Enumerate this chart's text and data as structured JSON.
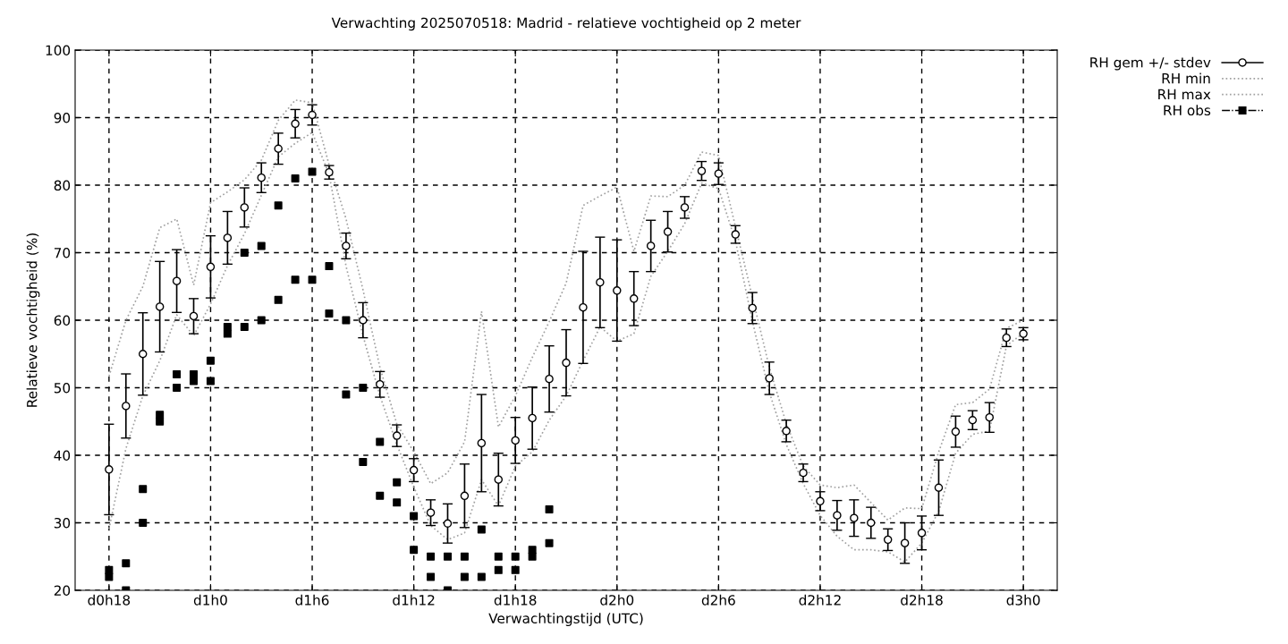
{
  "chart_data": {
    "type": "scatter",
    "title": "Verwachting 2025070518: Madrid - relatieve vochtigheid op 2 meter",
    "xlabel": "Verwachtingstijd (UTC)",
    "ylabel": "Relatieve vochtigheid (%)",
    "categories": [
      "d0h18",
      null,
      null,
      null,
      null,
      null,
      "d1h0",
      null,
      null,
      null,
      null,
      null,
      "d1h6",
      null,
      null,
      null,
      null,
      null,
      "d1h12",
      null,
      null,
      null,
      null,
      null,
      "d1h18",
      null,
      null,
      null,
      null,
      null,
      "d2h0",
      null,
      null,
      null,
      null,
      null,
      "d2h6",
      null,
      null,
      null,
      null,
      null,
      "d2h12",
      null,
      null,
      null,
      null,
      null,
      "d2h18",
      null,
      null,
      null,
      null,
      null,
      "d3h0"
    ],
    "ylim": [
      20,
      100
    ],
    "yticks": [
      20,
      30,
      40,
      50,
      60,
      70,
      80,
      90,
      100
    ],
    "grid": true,
    "legend": "top right",
    "series": [
      {
        "name": "RH gem +/- stdev",
        "marker": "circle",
        "color": "#000000",
        "values": [
          37.9,
          47.3,
          55.0,
          62.0,
          65.8,
          60.6,
          67.9,
          72.2,
          76.7,
          81.1,
          85.4,
          89.1,
          90.4,
          81.9,
          71.0,
          60.0,
          50.5,
          42.9,
          37.8,
          31.5,
          29.9,
          34.0,
          41.8,
          36.4,
          42.2,
          45.5,
          51.3,
          53.7,
          61.9,
          65.6,
          64.4,
          63.2,
          71.0,
          73.1,
          76.7,
          82.1,
          81.7,
          72.7,
          61.8,
          51.4,
          43.6,
          37.4,
          33.2,
          31.1,
          30.7,
          30.0,
          27.5,
          27.0,
          28.5,
          35.2,
          43.5,
          45.2,
          45.6,
          57.4,
          58.0
        ],
        "errors": [
          6.7,
          4.75,
          6.1,
          6.7,
          4.65,
          2.6,
          4.6,
          3.9,
          2.9,
          2.2,
          2.3,
          2.1,
          1.5,
          1.0,
          1.9,
          2.6,
          1.9,
          1.6,
          1.7,
          1.9,
          2.9,
          4.7,
          7.2,
          3.9,
          3.4,
          4.6,
          4.9,
          4.9,
          8.3,
          6.7,
          7.5,
          4.0,
          3.8,
          3.0,
          1.6,
          1.4,
          1.6,
          1.3,
          2.3,
          2.4,
          1.6,
          1.3,
          1.4,
          2.2,
          2.7,
          2.3,
          1.6,
          3.0,
          2.5,
          4.1,
          2.3,
          1.4,
          2.2,
          1.3,
          0.9
        ]
      },
      {
        "name": "RH min",
        "type": "line",
        "line_style": "dotted",
        "color": "#a0a0a0",
        "values": [
          29.1,
          41,
          48.8,
          54,
          60.8,
          57.7,
          62.4,
          68.1,
          72.8,
          78.5,
          84.2,
          86.2,
          87.8,
          81.6,
          68,
          57.7,
          48.8,
          41.6,
          35.3,
          29.6,
          27.5,
          28.5,
          36.4,
          32.5,
          38.4,
          40.5,
          45.2,
          48.8,
          54,
          59,
          56.9,
          58,
          66.5,
          70.2,
          74.3,
          80.3,
          79.5,
          71.7,
          59.8,
          49.3,
          41.6,
          35.8,
          31.1,
          28,
          26,
          26,
          25.7,
          24.2,
          27,
          31.7,
          40.3,
          43.1,
          43.6,
          56.2,
          58.1
        ]
      },
      {
        "name": "RH max",
        "type": "line",
        "line_style": "dotted",
        "color": "#a0a0a0",
        "values": [
          51.7,
          60,
          65,
          73.7,
          75.0,
          65.2,
          77.4,
          79,
          80.8,
          83.7,
          89.6,
          92.6,
          92.2,
          83,
          75,
          64.5,
          53,
          44.6,
          40.5,
          35.8,
          37.4,
          42,
          61.3,
          44.2,
          48.8,
          54.5,
          59.8,
          65.5,
          77,
          78.4,
          79.7,
          70.2,
          78.4,
          78.3,
          80,
          84.9,
          84.4,
          73.8,
          63.4,
          53,
          44.7,
          38.4,
          35.6,
          35.2,
          35.6,
          33,
          30.4,
          32.2,
          32.1,
          40.5,
          47.5,
          47.8,
          49.8,
          58.8,
          60
        ]
      },
      {
        "name": "RH obs",
        "marker": "square",
        "color": "#000000",
        "values": [
          23,
          24,
          35,
          46,
          52,
          52,
          54,
          59,
          70,
          71,
          77,
          81,
          82,
          68,
          60,
          50,
          42,
          36,
          31,
          25,
          25,
          25,
          29,
          25,
          25,
          26,
          32,
          null,
          null,
          null,
          null,
          null,
          null,
          null,
          null,
          null,
          null,
          null,
          null,
          null,
          null,
          null,
          null,
          null,
          null,
          null,
          null,
          null,
          null,
          null,
          null,
          null,
          null,
          null,
          null
        ]
      },
      {
        "marker": "square",
        "color": "#000000",
        "values": [
          22,
          20,
          30,
          45,
          50,
          51,
          51,
          58,
          59,
          60,
          63,
          66,
          66,
          61,
          49,
          39,
          34,
          33,
          26,
          22,
          20,
          22,
          22,
          23,
          23,
          25,
          27,
          null,
          null,
          null,
          null,
          null,
          null,
          null,
          null,
          null,
          null,
          null,
          null,
          null,
          null,
          null,
          null,
          null,
          null,
          null,
          null,
          null,
          null,
          null,
          null,
          null,
          null,
          null,
          null
        ]
      }
    ]
  }
}
